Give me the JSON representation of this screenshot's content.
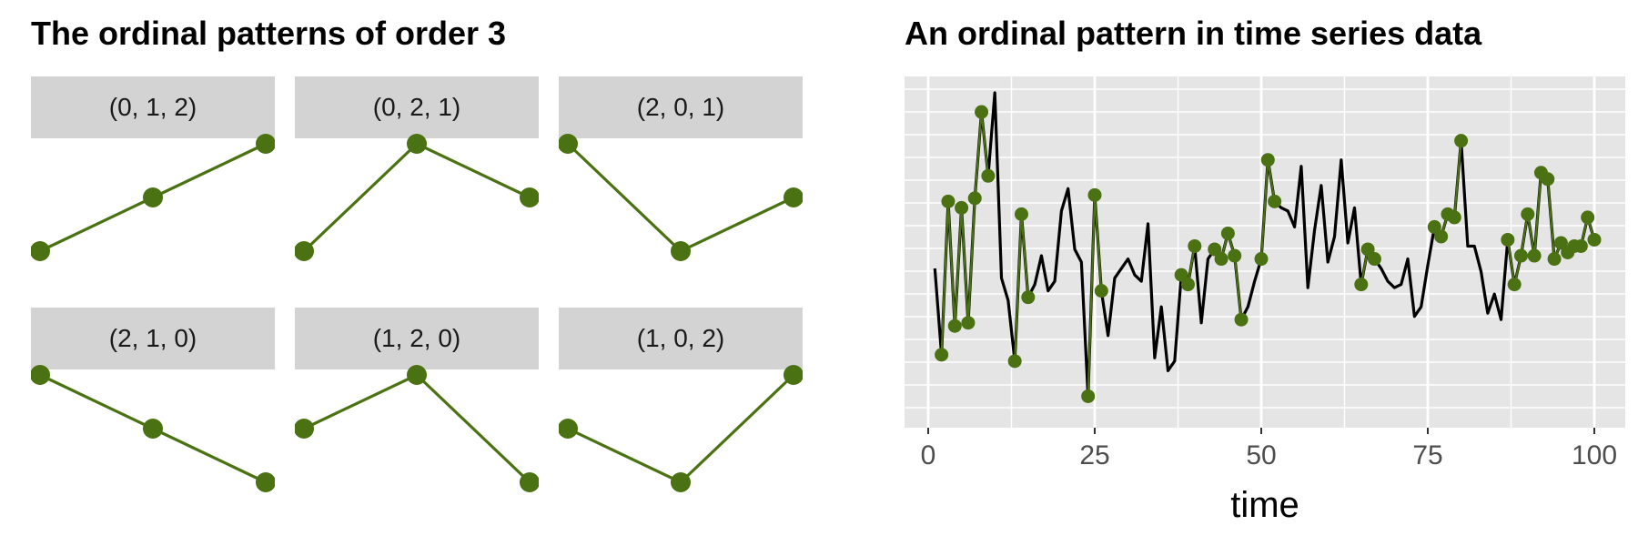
{
  "chart_data": [
    {
      "type": "line",
      "title": "The ordinal patterns of order 3",
      "color": "#4a7212",
      "facets": [
        {
          "label": "(0, 1, 2)",
          "values": [
            0,
            1,
            2
          ]
        },
        {
          "label": "(0, 2, 1)",
          "values": [
            0,
            2,
            1
          ]
        },
        {
          "label": "(2, 0, 1)",
          "values": [
            2,
            0,
            1
          ]
        },
        {
          "label": "(2, 1, 0)",
          "values": [
            2,
            1,
            0
          ]
        },
        {
          "label": "(1, 2, 0)",
          "values": [
            1,
            2,
            0
          ]
        },
        {
          "label": "(1, 0, 2)",
          "values": [
            1,
            0,
            2
          ]
        }
      ]
    },
    {
      "type": "line",
      "title": "An ordinal pattern in time series data",
      "xlabel": "time",
      "xlim": [
        0,
        100
      ],
      "ylim": [
        0,
        1
      ],
      "x_ticks": [
        "0",
        "25",
        "50",
        "75",
        "100"
      ],
      "grid": true,
      "background": "#e5e5e5",
      "line_color": "#000000",
      "highlight_color": "#4a7212",
      "series": [
        {
          "values": [
            0.45,
            0.18,
            0.66,
            0.27,
            0.64,
            0.28,
            0.67,
            0.94,
            0.74,
            1.0,
            0.42,
            0.35,
            0.16,
            0.62,
            0.36,
            0.4,
            0.49,
            0.38,
            0.41,
            0.63,
            0.7,
            0.51,
            0.47,
            0.05,
            0.68,
            0.38,
            0.24,
            0.42,
            0.45,
            0.48,
            0.43,
            0.41,
            0.59,
            0.17,
            0.33,
            0.13,
            0.16,
            0.43,
            0.4,
            0.52,
            0.28,
            0.48,
            0.51,
            0.48,
            0.56,
            0.49,
            0.29,
            0.33,
            0.41,
            0.48,
            0.79,
            0.66,
            0.64,
            0.63,
            0.58,
            0.77,
            0.39,
            0.57,
            0.71,
            0.47,
            0.55,
            0.79,
            0.53,
            0.64,
            0.4,
            0.51,
            0.48,
            0.45,
            0.41,
            0.39,
            0.4,
            0.48,
            0.3,
            0.33,
            0.46,
            0.58,
            0.55,
            0.62,
            0.61,
            0.85,
            0.52,
            0.52,
            0.44,
            0.31,
            0.37,
            0.29,
            0.54,
            0.4,
            0.49,
            0.62,
            0.49,
            0.75,
            0.73,
            0.48,
            0.53,
            0.5,
            0.52,
            0.52,
            0.61,
            0.54
          ]
        },
        {
          "highlighted_indices": [
            2,
            3,
            4,
            5,
            6,
            7,
            8,
            9,
            13,
            14,
            15,
            24,
            25,
            26,
            38,
            39,
            40,
            43,
            44,
            45,
            46,
            47,
            50,
            51,
            52,
            65,
            66,
            67,
            76,
            77,
            78,
            79,
            80,
            87,
            88,
            89,
            90,
            91,
            92,
            93,
            94,
            95,
            96,
            97,
            98,
            99,
            100
          ]
        }
      ]
    }
  ]
}
